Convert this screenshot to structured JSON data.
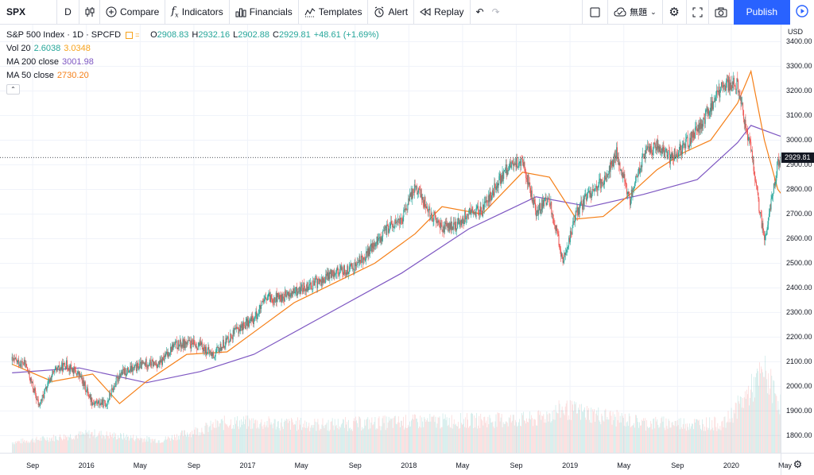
{
  "toolbar": {
    "symbol": "SPX",
    "interval": "D",
    "compare_label": "Compare",
    "indicators_label": "Indicators",
    "financials_label": "Financials",
    "templates_label": "Templates",
    "alert_label": "Alert",
    "replay_label": "Replay",
    "layout_name": "無題",
    "publish_label": "Publish"
  },
  "legend": {
    "title": "S&P 500 Index · 1D · SPCFD",
    "open_key": "O",
    "open": "2908.83",
    "high_key": "H",
    "high": "2932.16",
    "low_key": "L",
    "low": "2902.88",
    "close_key": "C",
    "close": "2929.81",
    "change": "+48.61 (+1.69%)",
    "indicators": [
      {
        "name": "Vol 20",
        "values": [
          "2.6038",
          "3.0348"
        ],
        "colors": [
          "#26a69a",
          "#f7a21b"
        ]
      },
      {
        "name": "MA 200 close",
        "values": [
          "3001.98"
        ],
        "colors": [
          "#7e57c2"
        ]
      },
      {
        "name": "MA 50 close",
        "values": [
          "2730.20"
        ],
        "colors": [
          "#f57f17"
        ]
      }
    ]
  },
  "price_axis": {
    "currency": "USD",
    "ticks": [
      "3400.00",
      "3300.00",
      "3200.00",
      "3100.00",
      "3000.00",
      "2900.00",
      "2800.00",
      "2700.00",
      "2600.00",
      "2500.00",
      "2400.00",
      "2300.00",
      "2200.00",
      "2100.00",
      "2000.00",
      "1900.00",
      "1800.00"
    ],
    "last_price": "2929.81"
  },
  "time_axis": {
    "labels": [
      "Sep",
      "2016",
      "May",
      "Sep",
      "2017",
      "May",
      "Sep",
      "2018",
      "May",
      "Sep",
      "2019",
      "May",
      "Sep",
      "2020",
      "May"
    ]
  },
  "colors": {
    "up": "#26a69a",
    "down": "#ef5350",
    "ma50": "#f57f17",
    "ma200": "#7e57c2",
    "grid": "#f0f3fa",
    "accent": "#2962ff"
  },
  "chart_data": {
    "type": "line",
    "title": "S&P 500 Index · 1D · SPCFD",
    "x_label_dates": [
      "2015-09",
      "2016-01",
      "2016-05",
      "2016-09",
      "2017-01",
      "2017-05",
      "2017-09",
      "2018-01",
      "2018-05",
      "2018-09",
      "2019-01",
      "2019-05",
      "2019-09",
      "2020-01",
      "2020-05"
    ],
    "ylim": [
      1740,
      3450
    ],
    "series": [
      {
        "name": "S&P 500 Index",
        "kind": "candles",
        "x": [
          "2015-07",
          "2015-08",
          "2015-09",
          "2015-10",
          "2015-11",
          "2015-12",
          "2016-01",
          "2016-02",
          "2016-03",
          "2016-04",
          "2016-05",
          "2016-06",
          "2016-07",
          "2016-08",
          "2016-09",
          "2016-10",
          "2016-11",
          "2016-12",
          "2017-01",
          "2017-02",
          "2017-03",
          "2017-04",
          "2017-05",
          "2017-06",
          "2017-07",
          "2017-08",
          "2017-09",
          "2017-10",
          "2017-11",
          "2017-12",
          "2018-01",
          "2018-02",
          "2018-03",
          "2018-04",
          "2018-05",
          "2018-06",
          "2018-07",
          "2018-08",
          "2018-09",
          "2018-10",
          "2018-11",
          "2018-12",
          "2019-01",
          "2019-02",
          "2019-03",
          "2019-04",
          "2019-05",
          "2019-06",
          "2019-07",
          "2019-08",
          "2019-09",
          "2019-10",
          "2019-11",
          "2019-12",
          "2020-01",
          "2020-02",
          "2020-03",
          "2020-04",
          "2020-05"
        ],
        "close": [
          2105,
          2090,
          1920,
          2050,
          2090,
          2045,
          1935,
          1930,
          2050,
          2070,
          2095,
          2090,
          2165,
          2175,
          2165,
          2125,
          2190,
          2240,
          2275,
          2360,
          2360,
          2380,
          2410,
          2425,
          2470,
          2470,
          2515,
          2575,
          2645,
          2675,
          2820,
          2715,
          2645,
          2650,
          2705,
          2715,
          2815,
          2900,
          2915,
          2710,
          2760,
          2505,
          2700,
          2785,
          2835,
          2945,
          2760,
          2940,
          2980,
          2925,
          2975,
          3035,
          3140,
          3230,
          3225,
          2955,
          2585,
          2910,
          2930
        ]
      },
      {
        "name": "MA 50 close",
        "kind": "line",
        "x": [
          "2015-07",
          "2015-10",
          "2016-01",
          "2016-03",
          "2016-05",
          "2016-08",
          "2016-11",
          "2017-01",
          "2017-04",
          "2017-07",
          "2017-10",
          "2018-01",
          "2018-03",
          "2018-06",
          "2018-09",
          "2018-11",
          "2019-01",
          "2019-03",
          "2019-05",
          "2019-07",
          "2019-09",
          "2019-11",
          "2020-01",
          "2020-02",
          "2020-03",
          "2020-04",
          "2020-05"
        ],
        "values": [
          2090,
          2020,
          2050,
          1930,
          2020,
          2130,
          2140,
          2220,
          2340,
          2420,
          2500,
          2620,
          2730,
          2700,
          2870,
          2850,
          2680,
          2690,
          2780,
          2880,
          2950,
          3000,
          3150,
          3280,
          3000,
          2800,
          2730
        ]
      },
      {
        "name": "MA 200 close",
        "kind": "line",
        "x": [
          "2015-07",
          "2015-12",
          "2016-05",
          "2016-09",
          "2017-01",
          "2017-06",
          "2017-12",
          "2018-05",
          "2018-10",
          "2019-02",
          "2019-06",
          "2019-10",
          "2020-01",
          "2020-02",
          "2020-04",
          "2020-05"
        ],
        "values": [
          2055,
          2075,
          2015,
          2060,
          2130,
          2280,
          2460,
          2640,
          2770,
          2730,
          2780,
          2840,
          2990,
          3060,
          3020,
          3002
        ]
      },
      {
        "name": "Vol 20",
        "kind": "volume",
        "x": [
          "2015-07",
          "2016-01",
          "2016-06",
          "2016-11",
          "2017-06",
          "2018-02",
          "2018-10",
          "2018-12",
          "2019-06",
          "2019-12",
          "2020-03",
          "2020-05"
        ],
        "values": [
          1.2,
          2.2,
          1.4,
          3.5,
          3.2,
          3.6,
          3.8,
          5.0,
          3.4,
          3.3,
          9.2,
          3.0
        ]
      }
    ],
    "grid": true,
    "legend": "top-left"
  }
}
